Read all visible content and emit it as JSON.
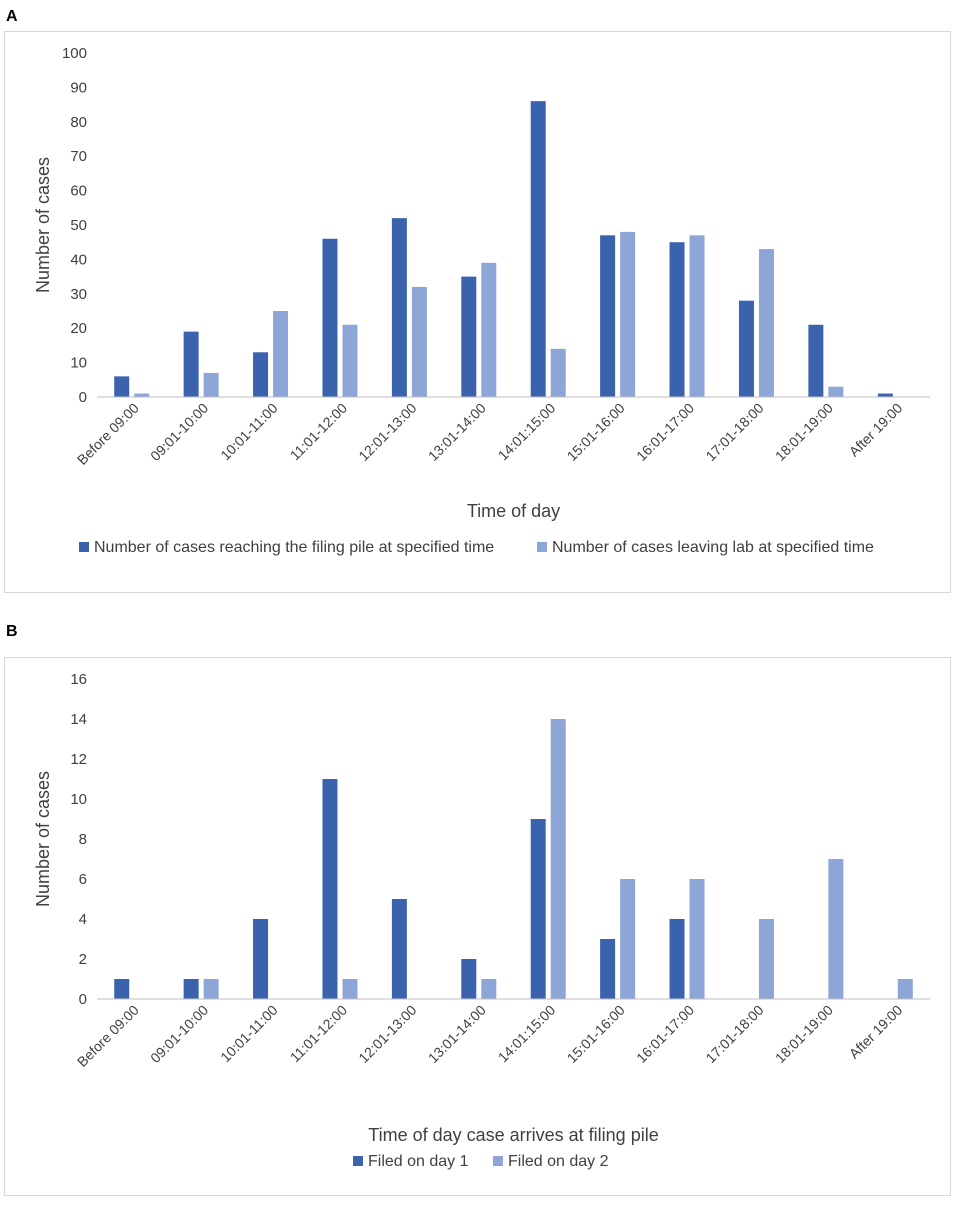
{
  "panels": {
    "a": {
      "letter": "A"
    },
    "b": {
      "letter": "B"
    }
  },
  "colors": {
    "series1": "#3b63ad",
    "series2": "#8ea5d8",
    "axis": "#bfbfbf",
    "text": "#404040"
  },
  "chart_data": [
    {
      "type": "bar",
      "panel": "A",
      "title": "",
      "xlabel": "Time of day",
      "ylabel": "Number of cases",
      "ylim": [
        0,
        100
      ],
      "yticks": [
        0,
        10,
        20,
        30,
        40,
        50,
        60,
        70,
        80,
        90,
        100
      ],
      "grid": false,
      "legend_position": "bottom",
      "categories": [
        "Before 09:00",
        "09:01-10:00",
        "10:01-11:00",
        "11:01-12:00",
        "12:01-13:00",
        "13:01-14:00",
        "14:01:15:00",
        "15:01-16:00",
        "16:01-17:00",
        "17:01-18:00",
        "18:01-19:00",
        "After 19:00"
      ],
      "series": [
        {
          "name": "Number of cases reaching the filing pile at specified time",
          "values": [
            6,
            19,
            13,
            46,
            52,
            35,
            86,
            47,
            45,
            28,
            21,
            1
          ]
        },
        {
          "name": "Number of cases leaving lab at specified time",
          "values": [
            1,
            7,
            25,
            21,
            32,
            39,
            14,
            48,
            47,
            43,
            3,
            0
          ]
        }
      ]
    },
    {
      "type": "bar",
      "panel": "B",
      "title": "",
      "xlabel": "Time of day case arrives at filing pile",
      "ylabel": "Number of cases",
      "ylim": [
        0,
        16
      ],
      "yticks": [
        0,
        2,
        4,
        6,
        8,
        10,
        12,
        14,
        16
      ],
      "grid": false,
      "legend_position": "bottom",
      "categories": [
        "Before 09:00",
        "09:01-10:00",
        "10:01-11:00",
        "11:01-12:00",
        "12:01-13:00",
        "13:01-14:00",
        "14:01:15:00",
        "15:01-16:00",
        "16:01-17:00",
        "17:01-18:00",
        "18:01-19:00",
        "After 19:00"
      ],
      "series": [
        {
          "name": "Filed on day 1",
          "values": [
            1,
            1,
            4,
            11,
            5,
            2,
            9,
            3,
            4,
            0,
            0,
            0
          ]
        },
        {
          "name": "Filed on day 2",
          "values": [
            0,
            1,
            0,
            1,
            0,
            1,
            14,
            6,
            6,
            4,
            7,
            1
          ]
        }
      ]
    }
  ]
}
